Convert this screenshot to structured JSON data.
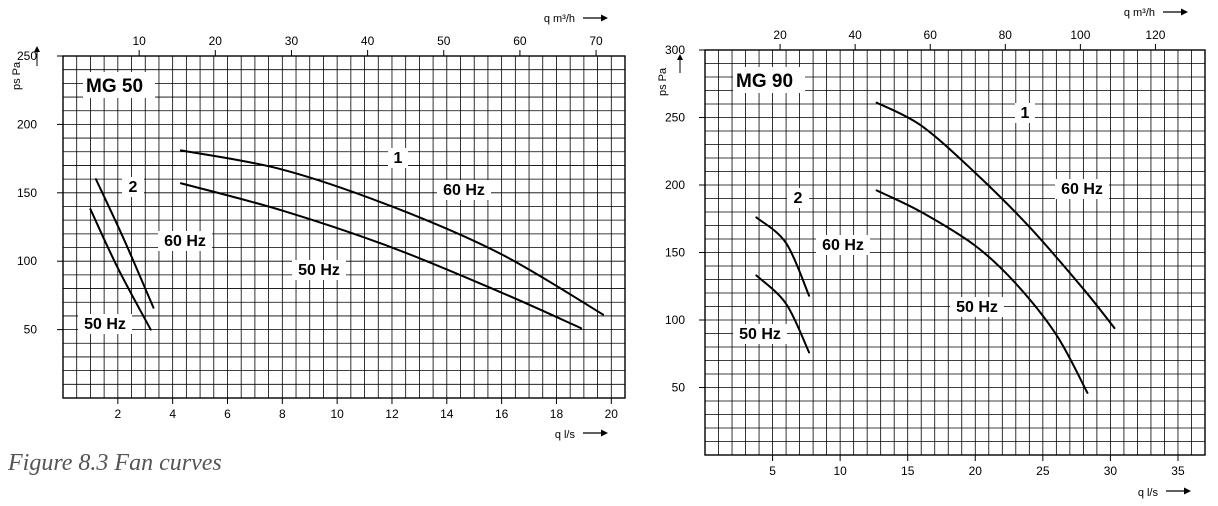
{
  "caption": "Figure 8.3 Fan curves",
  "chart_data": [
    {
      "type": "line",
      "title": "MG 50",
      "xlabel": "q l/s",
      "x2label": "q m³/h",
      "ylabel": "ps Pa",
      "xlim": [
        0,
        20.5
      ],
      "ylim": [
        0,
        250
      ],
      "x_ticks": [
        2,
        4,
        6,
        8,
        10,
        12,
        14,
        16,
        18,
        20
      ],
      "x2_ticks": [
        10,
        20,
        30,
        40,
        50,
        60,
        70
      ],
      "y_ticks": [
        50,
        100,
        150,
        200,
        250
      ],
      "grid": true,
      "series": [
        {
          "name": "1 60 Hz",
          "x": [
            4.3,
            8,
            12,
            16,
            19.7
          ],
          "y": [
            181,
            167,
            140,
            105,
            61
          ]
        },
        {
          "name": "1 50 Hz",
          "x": [
            4.3,
            8,
            12,
            16,
            18.9
          ],
          "y": [
            157,
            137,
            110,
            77,
            51
          ]
        },
        {
          "name": "2 60 Hz",
          "x": [
            1.2,
            2.2,
            3.3
          ],
          "y": [
            160,
            117,
            66
          ]
        },
        {
          "name": "2 50 Hz",
          "x": [
            1.0,
            2.0,
            3.2
          ],
          "y": [
            138,
            95,
            50
          ]
        }
      ],
      "annotations": [
        "1",
        "60 Hz",
        "50 Hz",
        "2",
        "60 Hz",
        "50 Hz"
      ]
    },
    {
      "type": "line",
      "title": "MG 90",
      "xlabel": "q l/s",
      "x2label": "q m³/h",
      "ylabel": "ps Pa",
      "xlim": [
        0,
        37
      ],
      "ylim": [
        0,
        300
      ],
      "x_ticks": [
        5,
        10,
        15,
        20,
        25,
        30,
        35
      ],
      "x2_ticks": [
        20,
        40,
        60,
        80,
        100,
        120
      ],
      "y_ticks": [
        50,
        100,
        150,
        200,
        250,
        300
      ],
      "grid": true,
      "series": [
        {
          "name": "1 60 Hz",
          "x": [
            12.7,
            16,
            20,
            24,
            28,
            30.3
          ],
          "y": [
            261,
            244,
            209,
            169,
            123,
            94
          ]
        },
        {
          "name": "1 50 Hz",
          "x": [
            12.7,
            16,
            20,
            23,
            26,
            28.3
          ],
          "y": [
            196,
            180,
            155,
            127,
            89,
            46
          ]
        },
        {
          "name": "2 60 Hz",
          "x": [
            3.8,
            6,
            7.7
          ],
          "y": [
            176,
            157,
            118
          ]
        },
        {
          "name": "2 50 Hz",
          "x": [
            3.8,
            6,
            7.7
          ],
          "y": [
            133,
            112,
            76
          ]
        }
      ],
      "annotations": [
        "1",
        "60 Hz",
        "50 Hz",
        "2",
        "60 Hz",
        "50 Hz"
      ]
    }
  ]
}
